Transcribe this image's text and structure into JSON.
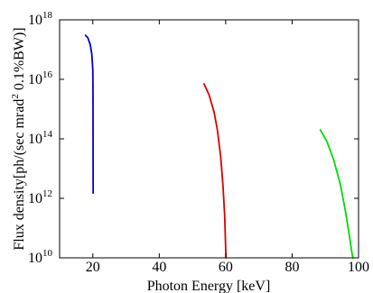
{
  "chart_data": {
    "type": "line",
    "title": "",
    "xlabel": "Photon Energy [keV]",
    "ylabel": "Flux density[ph/(sec mrad",
    "ylabel_sup": "2",
    "ylabel_tail": " 0.1%BW)]",
    "xlim": [
      10,
      100
    ],
    "ylim_log10": [
      10,
      18
    ],
    "yscale": "log",
    "grid": false,
    "x_ticks": [
      "20",
      "40",
      "60",
      "80",
      "100"
    ],
    "y_ticks": [
      {
        "base": "10",
        "exp": "10"
      },
      {
        "base": "10",
        "exp": "12"
      },
      {
        "base": "10",
        "exp": "14"
      },
      {
        "base": "10",
        "exp": "16"
      },
      {
        "base": "10",
        "exp": "18"
      }
    ],
    "series": [
      {
        "color": "#0000cc",
        "points": [
          [
            17.8,
            3e+17
          ],
          [
            18.5,
            2.5e+17
          ],
          [
            19.2,
            1.5e+17
          ],
          [
            19.7,
            7e+16
          ],
          [
            20.0,
            2e+16
          ],
          [
            20.05,
            3000000000000000.0
          ],
          [
            20.1,
            1500000000000.0
          ]
        ]
      },
      {
        "color": "#dd0000",
        "points": [
          [
            53.5,
            7000000000000000.0
          ],
          [
            55.0,
            3000000000000000.0
          ],
          [
            56.5,
            800000000000000.0
          ],
          [
            57.5,
            200000000000000.0
          ],
          [
            58.5,
            25000000000000.0
          ],
          [
            59.2,
            2500000000000.0
          ],
          [
            59.7,
            250000000000.0
          ],
          [
            60.0,
            20000000000.0
          ],
          [
            60.1,
            10000000000.0
          ]
        ]
      },
      {
        "color": "#00dd00",
        "points": [
          [
            88.5,
            200000000000000.0
          ],
          [
            90.5,
            80000000000000.0
          ],
          [
            92.5,
            20000000000000.0
          ],
          [
            94.5,
            3000000000000.0
          ],
          [
            96.0,
            400000000000.0
          ],
          [
            97.2,
            60000000000.0
          ],
          [
            98.0,
            15000000000.0
          ],
          [
            98.3,
            10000000000.0
          ]
        ]
      }
    ]
  }
}
